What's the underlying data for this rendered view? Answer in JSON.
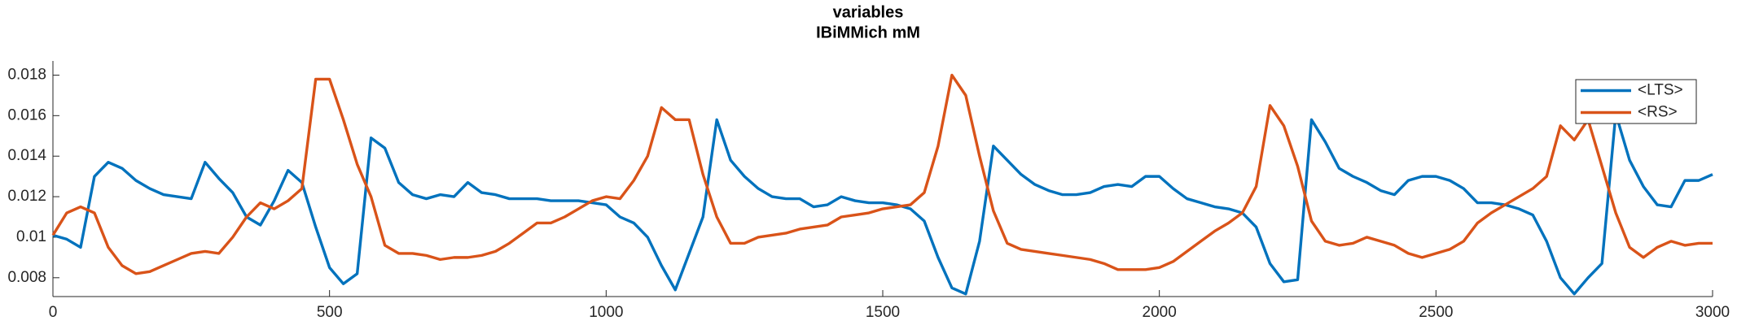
{
  "chart_data": {
    "type": "line",
    "title": "variables",
    "subtitle": "IBiMMich mM",
    "x": [
      0,
      25,
      50,
      75,
      100,
      125,
      150,
      175,
      200,
      225,
      250,
      275,
      300,
      325,
      350,
      375,
      400,
      425,
      450,
      475,
      500,
      525,
      550,
      575,
      600,
      625,
      650,
      675,
      700,
      725,
      750,
      775,
      800,
      825,
      850,
      875,
      900,
      925,
      950,
      975,
      1000,
      1025,
      1050,
      1075,
      1100,
      1125,
      1150,
      1175,
      1200,
      1225,
      1250,
      1275,
      1300,
      1325,
      1350,
      1375,
      1400,
      1425,
      1450,
      1475,
      1500,
      1525,
      1550,
      1575,
      1600,
      1625,
      1650,
      1675,
      1700,
      1725,
      1750,
      1775,
      1800,
      1825,
      1850,
      1875,
      1900,
      1925,
      1950,
      1975,
      2000,
      2025,
      2050,
      2075,
      2100,
      2125,
      2150,
      2175,
      2200,
      2225,
      2250,
      2275,
      2300,
      2325,
      2350,
      2375,
      2400,
      2425,
      2450,
      2475,
      2500,
      2525,
      2550,
      2575,
      2600,
      2625,
      2650,
      2675,
      2700,
      2725,
      2750,
      2775,
      2800,
      2825,
      2850,
      2875,
      2900,
      2925,
      2950,
      2975,
      3000
    ],
    "series": [
      {
        "name": "<LTS>",
        "color": "#0072bd",
        "values": [
          0.0101,
          0.0099,
          0.0095,
          0.013,
          0.0137,
          0.0134,
          0.0128,
          0.0124,
          0.0121,
          0.012,
          0.0119,
          0.0137,
          0.0129,
          0.0122,
          0.011,
          0.0106,
          0.0118,
          0.0133,
          0.0127,
          0.0105,
          0.0085,
          0.0077,
          0.0082,
          0.0149,
          0.0144,
          0.0127,
          0.0121,
          0.0119,
          0.0121,
          0.012,
          0.0127,
          0.0122,
          0.0121,
          0.0119,
          0.0119,
          0.0119,
          0.0118,
          0.0118,
          0.0118,
          0.0117,
          0.0116,
          0.011,
          0.0107,
          0.01,
          0.0086,
          0.0074,
          0.0092,
          0.011,
          0.0158,
          0.0138,
          0.013,
          0.0124,
          0.012,
          0.0119,
          0.0119,
          0.0115,
          0.0116,
          0.012,
          0.0118,
          0.0117,
          0.0117,
          0.0116,
          0.0114,
          0.0108,
          0.009,
          0.0075,
          0.0072,
          0.0098,
          0.0145,
          0.0138,
          0.0131,
          0.0126,
          0.0123,
          0.0121,
          0.0121,
          0.0122,
          0.0125,
          0.0126,
          0.0125,
          0.013,
          0.013,
          0.0124,
          0.0119,
          0.0117,
          0.0115,
          0.0114,
          0.0112,
          0.0105,
          0.0087,
          0.0078,
          0.0079,
          0.0158,
          0.0147,
          0.0134,
          0.013,
          0.0127,
          0.0123,
          0.0121,
          0.0128,
          0.013,
          0.013,
          0.0128,
          0.0124,
          0.0117,
          0.0117,
          0.0116,
          0.0114,
          0.0111,
          0.0098,
          0.008,
          0.0072,
          0.008,
          0.0087,
          0.0161,
          0.0138,
          0.0125,
          0.0116,
          0.0115,
          0.0128,
          0.0128,
          0.0131
        ]
      },
      {
        "name": "<RS>",
        "color": "#d95319",
        "values": [
          0.0101,
          0.0112,
          0.0115,
          0.0112,
          0.0095,
          0.0086,
          0.0082,
          0.0083,
          0.0086,
          0.0089,
          0.0092,
          0.0093,
          0.0092,
          0.01,
          0.011,
          0.0117,
          0.0114,
          0.0118,
          0.0124,
          0.0178,
          0.0178,
          0.0158,
          0.0136,
          0.012,
          0.0096,
          0.0092,
          0.0092,
          0.0091,
          0.0089,
          0.009,
          0.009,
          0.0091,
          0.0093,
          0.0097,
          0.0102,
          0.0107,
          0.0107,
          0.011,
          0.0114,
          0.0118,
          0.012,
          0.0119,
          0.0128,
          0.014,
          0.0164,
          0.0158,
          0.0158,
          0.0131,
          0.011,
          0.0097,
          0.0097,
          0.01,
          0.0101,
          0.0102,
          0.0104,
          0.0105,
          0.0106,
          0.011,
          0.0111,
          0.0112,
          0.0114,
          0.0115,
          0.0116,
          0.0122,
          0.0145,
          0.018,
          0.017,
          0.014,
          0.0113,
          0.0097,
          0.0094,
          0.0093,
          0.0092,
          0.0091,
          0.009,
          0.0089,
          0.0087,
          0.0084,
          0.0084,
          0.0084,
          0.0085,
          0.0088,
          0.0093,
          0.0098,
          0.0103,
          0.0107,
          0.0112,
          0.0125,
          0.0165,
          0.0155,
          0.0135,
          0.0108,
          0.0098,
          0.0096,
          0.0097,
          0.01,
          0.0098,
          0.0096,
          0.0092,
          0.009,
          0.0092,
          0.0094,
          0.0098,
          0.0107,
          0.0112,
          0.0116,
          0.012,
          0.0124,
          0.013,
          0.0155,
          0.0148,
          0.0158,
          0.0135,
          0.0112,
          0.0095,
          0.009,
          0.0095,
          0.0098,
          0.0096,
          0.0097,
          0.0097
        ]
      }
    ],
    "xlim": [
      0,
      3000
    ],
    "xticks": [
      0,
      500,
      1000,
      1500,
      2000,
      2500,
      3000
    ],
    "ylim": [
      0.00707,
      0.0187
    ],
    "yticks": [
      0.008,
      0.01,
      0.012,
      0.014,
      0.016,
      0.018
    ],
    "grid": false,
    "legend": "northeast"
  }
}
